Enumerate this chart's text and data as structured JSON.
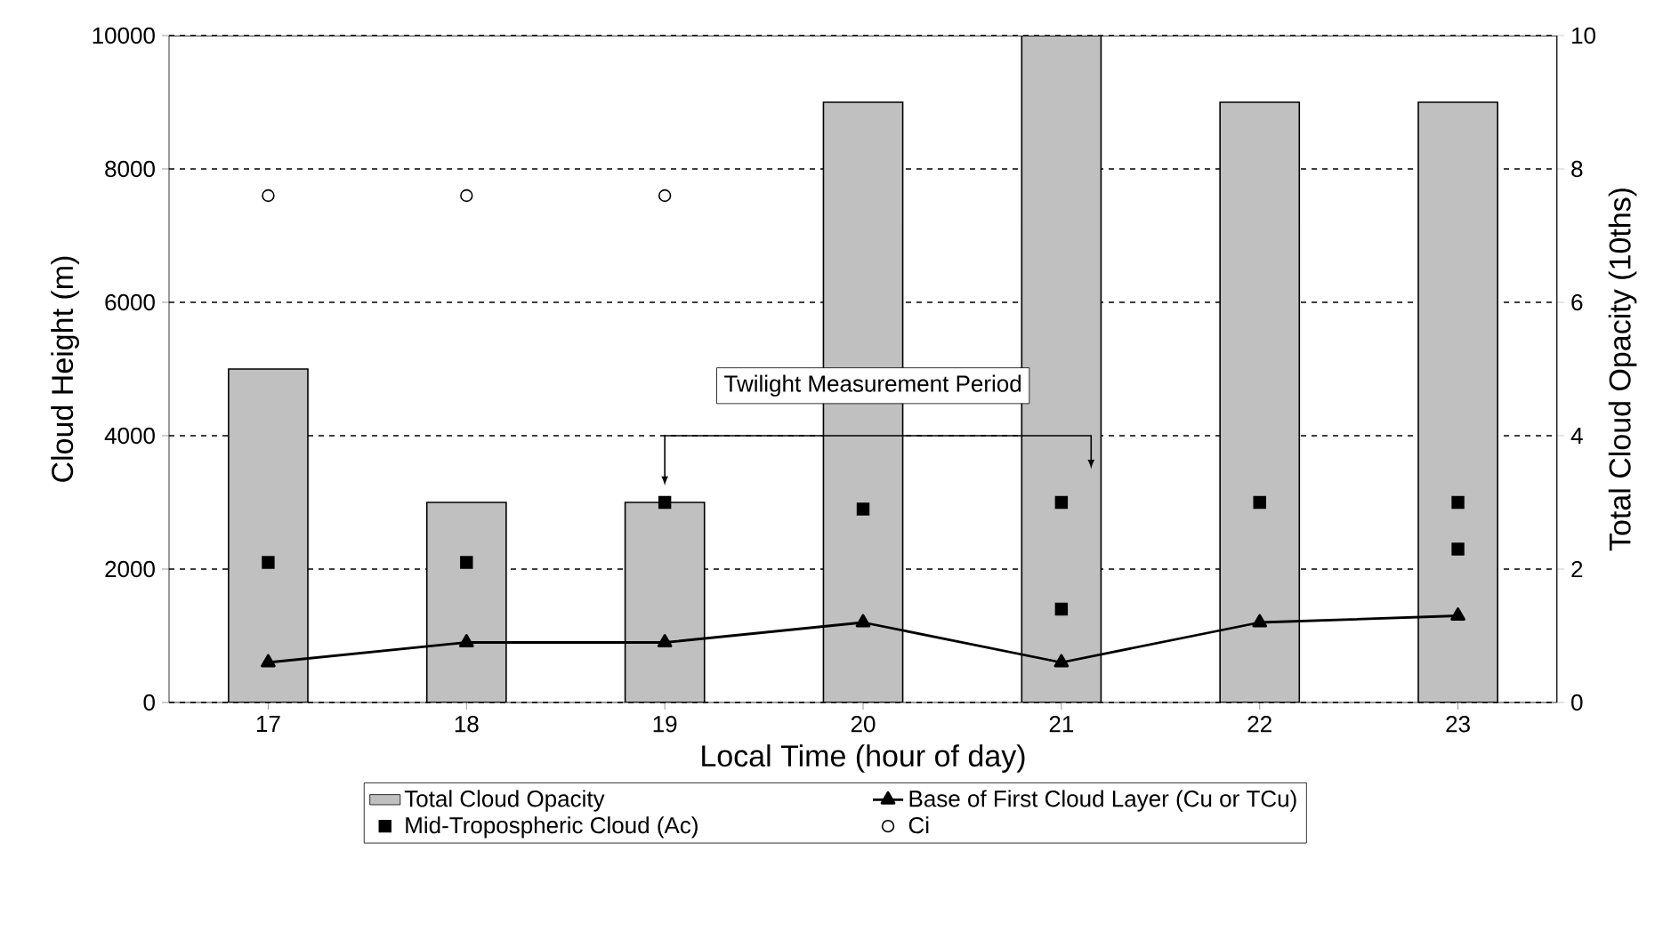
{
  "chart_data": {
    "type": "bar",
    "categories": [
      "17",
      "18",
      "19",
      "20",
      "21",
      "22",
      "23"
    ],
    "xlabel": "Local Time (hour of day)",
    "ylabel": "Cloud Height (m)",
    "y2label": "Total Cloud Opacity (10ths)",
    "ylim": [
      0,
      10000
    ],
    "yticks": [
      0,
      2000,
      4000,
      6000,
      8000,
      10000
    ],
    "y2lim": [
      0,
      10
    ],
    "y2ticks": [
      0,
      2,
      4,
      6,
      8,
      10
    ],
    "grid": "y",
    "legend": "bottom",
    "annotations": [
      "Twilight Measurement Period"
    ],
    "series": [
      {
        "name": "Total Cloud Opacity",
        "axis": "y2",
        "color": "#c0c0c0",
        "values": [
          5,
          3,
          3,
          9,
          10,
          9,
          9
        ]
      },
      {
        "name": "Base of First Cloud Layer (Cu or TCu)",
        "type": "line",
        "marker": "triangle",
        "color": "#000000",
        "values": [
          600,
          900,
          900,
          1200,
          600,
          1200,
          1300
        ]
      },
      {
        "name": "Mid-Tropospheric Cloud (Ac)",
        "type": "scatter",
        "marker": "square",
        "color": "#000000",
        "x": [
          "17",
          "18",
          "19",
          "20",
          "21",
          "21",
          "22",
          "23",
          "23"
        ],
        "values": [
          2100,
          2100,
          3000,
          2900,
          3000,
          1400,
          3000,
          3000,
          2300
        ]
      },
      {
        "name": "Ci",
        "type": "scatter",
        "marker": "circle",
        "color": "#000000",
        "x": [
          "17",
          "18",
          "19"
        ],
        "values": [
          7600,
          7600,
          7600
        ]
      }
    ]
  }
}
